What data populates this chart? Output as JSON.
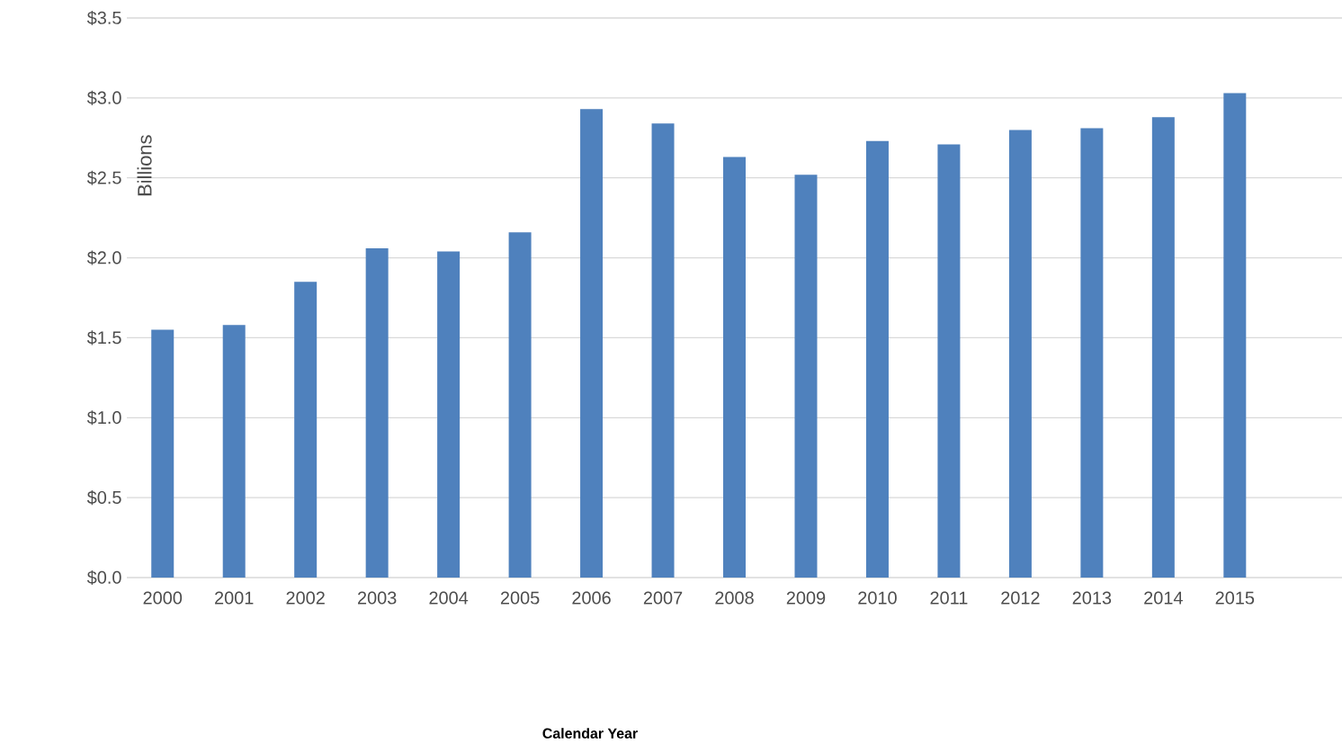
{
  "chart_data": {
    "type": "bar",
    "annotations": [
      "Calendar Year"
    ],
    "ylabel": "Billions",
    "categories": [
      "2000",
      "2001",
      "2002",
      "2003",
      "2004",
      "2005",
      "2006",
      "2007",
      "2008",
      "2009",
      "2010",
      "2011",
      "2012",
      "2013",
      "2014",
      "2015",
      null
    ],
    "values": [
      1.55,
      1.58,
      1.85,
      2.06,
      2.04,
      2.16,
      2.93,
      2.84,
      2.63,
      2.52,
      2.73,
      2.71,
      2.8,
      2.81,
      2.88,
      3.03,
      null
    ],
    "color": "#4f81bd",
    "ylim": [
      0,
      3.5
    ],
    "yticks": [
      {
        "value": 0,
        "label": "$0.0"
      },
      {
        "value": 0.5,
        "label": "$0.5"
      },
      {
        "value": 1,
        "label": "$1.0"
      },
      {
        "value": 1.5,
        "label": "$1.5"
      },
      {
        "value": 2,
        "label": "$2.0"
      },
      {
        "value": 2.5,
        "label": "$2.5"
      },
      {
        "value": 3,
        "label": "$3.0"
      },
      {
        "value": 3.5,
        "label": "$3.5"
      }
    ],
    "grid": "y"
  }
}
